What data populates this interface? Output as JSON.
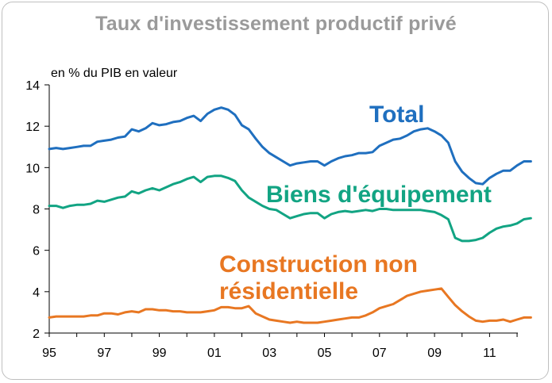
{
  "chart_data": {
    "type": "line",
    "title": "Taux d'investissement productif privé",
    "unit_label": "en % du PIB en valeur",
    "x_tick_labels": [
      "95",
      "97",
      "99",
      "01",
      "03",
      "05",
      "07",
      "09",
      "11"
    ],
    "xlim": [
      1995,
      2012.25
    ],
    "ylim": [
      2,
      14
    ],
    "y_ticks": [
      2,
      4,
      6,
      8,
      10,
      12,
      14
    ],
    "grid": false,
    "series": [
      {
        "name": "Total",
        "color": "#1f6fbf",
        "label_lines": [
          "Total"
        ],
        "points": [
          [
            1995.0,
            10.9
          ],
          [
            1995.25,
            10.95
          ],
          [
            1995.5,
            10.9
          ],
          [
            1995.75,
            10.95
          ],
          [
            1996.0,
            11.0
          ],
          [
            1996.25,
            11.05
          ],
          [
            1996.5,
            11.05
          ],
          [
            1996.75,
            11.25
          ],
          [
            1997.0,
            11.3
          ],
          [
            1997.25,
            11.35
          ],
          [
            1997.5,
            11.45
          ],
          [
            1997.75,
            11.5
          ],
          [
            1998.0,
            11.85
          ],
          [
            1998.25,
            11.75
          ],
          [
            1998.5,
            11.9
          ],
          [
            1998.75,
            12.15
          ],
          [
            1999.0,
            12.05
          ],
          [
            1999.25,
            12.1
          ],
          [
            1999.5,
            12.2
          ],
          [
            1999.75,
            12.25
          ],
          [
            2000.0,
            12.4
          ],
          [
            2000.25,
            12.5
          ],
          [
            2000.5,
            12.25
          ],
          [
            2000.75,
            12.6
          ],
          [
            2001.0,
            12.8
          ],
          [
            2001.25,
            12.9
          ],
          [
            2001.5,
            12.8
          ],
          [
            2001.75,
            12.55
          ],
          [
            2002.0,
            12.05
          ],
          [
            2002.25,
            11.85
          ],
          [
            2002.5,
            11.4
          ],
          [
            2002.75,
            11.0
          ],
          [
            2003.0,
            10.7
          ],
          [
            2003.25,
            10.5
          ],
          [
            2003.5,
            10.3
          ],
          [
            2003.75,
            10.1
          ],
          [
            2004.0,
            10.2
          ],
          [
            2004.25,
            10.25
          ],
          [
            2004.5,
            10.3
          ],
          [
            2004.75,
            10.3
          ],
          [
            2005.0,
            10.1
          ],
          [
            2005.25,
            10.3
          ],
          [
            2005.5,
            10.45
          ],
          [
            2005.75,
            10.55
          ],
          [
            2006.0,
            10.6
          ],
          [
            2006.25,
            10.7
          ],
          [
            2006.5,
            10.7
          ],
          [
            2006.75,
            10.75
          ],
          [
            2007.0,
            11.05
          ],
          [
            2007.25,
            11.2
          ],
          [
            2007.5,
            11.35
          ],
          [
            2007.75,
            11.4
          ],
          [
            2008.0,
            11.55
          ],
          [
            2008.25,
            11.75
          ],
          [
            2008.5,
            11.85
          ],
          [
            2008.75,
            11.9
          ],
          [
            2009.0,
            11.75
          ],
          [
            2009.25,
            11.55
          ],
          [
            2009.5,
            11.2
          ],
          [
            2009.75,
            10.3
          ],
          [
            2010.0,
            9.8
          ],
          [
            2010.25,
            9.5
          ],
          [
            2010.5,
            9.25
          ],
          [
            2010.75,
            9.2
          ],
          [
            2011.0,
            9.5
          ],
          [
            2011.25,
            9.7
          ],
          [
            2011.5,
            9.85
          ],
          [
            2011.75,
            9.85
          ],
          [
            2012.0,
            10.1
          ],
          [
            2012.25,
            10.3
          ],
          [
            2012.5,
            10.3
          ]
        ]
      },
      {
        "name": "Biens d'équipement",
        "color": "#12a483",
        "label_lines": [
          "Biens d'équipement"
        ],
        "points": [
          [
            1995.0,
            8.15
          ],
          [
            1995.25,
            8.15
          ],
          [
            1995.5,
            8.05
          ],
          [
            1995.75,
            8.15
          ],
          [
            1996.0,
            8.2
          ],
          [
            1996.25,
            8.2
          ],
          [
            1996.5,
            8.25
          ],
          [
            1996.75,
            8.4
          ],
          [
            1997.0,
            8.35
          ],
          [
            1997.25,
            8.45
          ],
          [
            1997.5,
            8.55
          ],
          [
            1997.75,
            8.6
          ],
          [
            1998.0,
            8.85
          ],
          [
            1998.25,
            8.75
          ],
          [
            1998.5,
            8.9
          ],
          [
            1998.75,
            9.0
          ],
          [
            1999.0,
            8.9
          ],
          [
            1999.25,
            9.05
          ],
          [
            1999.5,
            9.2
          ],
          [
            1999.75,
            9.3
          ],
          [
            2000.0,
            9.45
          ],
          [
            2000.25,
            9.55
          ],
          [
            2000.5,
            9.3
          ],
          [
            2000.75,
            9.55
          ],
          [
            2001.0,
            9.6
          ],
          [
            2001.25,
            9.6
          ],
          [
            2001.5,
            9.5
          ],
          [
            2001.75,
            9.35
          ],
          [
            2002.0,
            8.9
          ],
          [
            2002.25,
            8.55
          ],
          [
            2002.5,
            8.35
          ],
          [
            2002.75,
            8.15
          ],
          [
            2003.0,
            8.0
          ],
          [
            2003.25,
            7.95
          ],
          [
            2003.5,
            7.75
          ],
          [
            2003.75,
            7.55
          ],
          [
            2004.0,
            7.65
          ],
          [
            2004.25,
            7.75
          ],
          [
            2004.5,
            7.8
          ],
          [
            2004.75,
            7.8
          ],
          [
            2005.0,
            7.55
          ],
          [
            2005.25,
            7.75
          ],
          [
            2005.5,
            7.85
          ],
          [
            2005.75,
            7.9
          ],
          [
            2006.0,
            7.85
          ],
          [
            2006.25,
            7.9
          ],
          [
            2006.5,
            7.95
          ],
          [
            2006.75,
            7.9
          ],
          [
            2007.0,
            8.0
          ],
          [
            2007.25,
            8.0
          ],
          [
            2007.5,
            7.95
          ],
          [
            2007.75,
            7.95
          ],
          [
            2008.0,
            7.95
          ],
          [
            2008.25,
            7.95
          ],
          [
            2008.5,
            7.95
          ],
          [
            2008.75,
            7.9
          ],
          [
            2009.0,
            7.85
          ],
          [
            2009.25,
            7.7
          ],
          [
            2009.5,
            7.5
          ],
          [
            2009.75,
            6.6
          ],
          [
            2010.0,
            6.45
          ],
          [
            2010.25,
            6.45
          ],
          [
            2010.5,
            6.5
          ],
          [
            2010.75,
            6.6
          ],
          [
            2011.0,
            6.85
          ],
          [
            2011.25,
            7.05
          ],
          [
            2011.5,
            7.15
          ],
          [
            2011.75,
            7.2
          ],
          [
            2012.0,
            7.3
          ],
          [
            2012.25,
            7.5
          ],
          [
            2012.5,
            7.55
          ]
        ]
      },
      {
        "name": "Construction non résidentielle",
        "color": "#e87722",
        "label_lines": [
          "Construction non",
          "résidentielle"
        ],
        "points": [
          [
            1995.0,
            2.75
          ],
          [
            1995.25,
            2.8
          ],
          [
            1995.5,
            2.8
          ],
          [
            1995.75,
            2.8
          ],
          [
            1996.0,
            2.8
          ],
          [
            1996.25,
            2.8
          ],
          [
            1996.5,
            2.85
          ],
          [
            1996.75,
            2.85
          ],
          [
            1997.0,
            2.95
          ],
          [
            1997.25,
            2.95
          ],
          [
            1997.5,
            2.9
          ],
          [
            1997.75,
            3.0
          ],
          [
            1998.0,
            3.05
          ],
          [
            1998.25,
            3.0
          ],
          [
            1998.5,
            3.15
          ],
          [
            1998.75,
            3.15
          ],
          [
            1999.0,
            3.1
          ],
          [
            1999.25,
            3.1
          ],
          [
            1999.5,
            3.05
          ],
          [
            1999.75,
            3.05
          ],
          [
            2000.0,
            3.0
          ],
          [
            2000.25,
            3.0
          ],
          [
            2000.5,
            3.0
          ],
          [
            2000.75,
            3.05
          ],
          [
            2001.0,
            3.1
          ],
          [
            2001.25,
            3.25
          ],
          [
            2001.5,
            3.25
          ],
          [
            2001.75,
            3.2
          ],
          [
            2002.0,
            3.2
          ],
          [
            2002.25,
            3.3
          ],
          [
            2002.5,
            2.95
          ],
          [
            2002.75,
            2.8
          ],
          [
            2003.0,
            2.65
          ],
          [
            2003.25,
            2.6
          ],
          [
            2003.5,
            2.55
          ],
          [
            2003.75,
            2.5
          ],
          [
            2004.0,
            2.55
          ],
          [
            2004.25,
            2.5
          ],
          [
            2004.5,
            2.5
          ],
          [
            2004.75,
            2.5
          ],
          [
            2005.0,
            2.55
          ],
          [
            2005.25,
            2.6
          ],
          [
            2005.5,
            2.65
          ],
          [
            2005.75,
            2.7
          ],
          [
            2006.0,
            2.75
          ],
          [
            2006.25,
            2.75
          ],
          [
            2006.5,
            2.85
          ],
          [
            2006.75,
            3.0
          ],
          [
            2007.0,
            3.2
          ],
          [
            2007.25,
            3.3
          ],
          [
            2007.5,
            3.4
          ],
          [
            2007.75,
            3.6
          ],
          [
            2008.0,
            3.8
          ],
          [
            2008.25,
            3.9
          ],
          [
            2008.5,
            4.0
          ],
          [
            2008.75,
            4.05
          ],
          [
            2009.0,
            4.1
          ],
          [
            2009.25,
            4.15
          ],
          [
            2009.5,
            3.75
          ],
          [
            2009.75,
            3.35
          ],
          [
            2010.0,
            3.05
          ],
          [
            2010.25,
            2.8
          ],
          [
            2010.5,
            2.6
          ],
          [
            2010.75,
            2.55
          ],
          [
            2011.0,
            2.6
          ],
          [
            2011.25,
            2.6
          ],
          [
            2011.5,
            2.65
          ],
          [
            2011.75,
            2.55
          ],
          [
            2012.0,
            2.65
          ],
          [
            2012.25,
            2.75
          ],
          [
            2012.5,
            2.75
          ]
        ]
      }
    ]
  }
}
